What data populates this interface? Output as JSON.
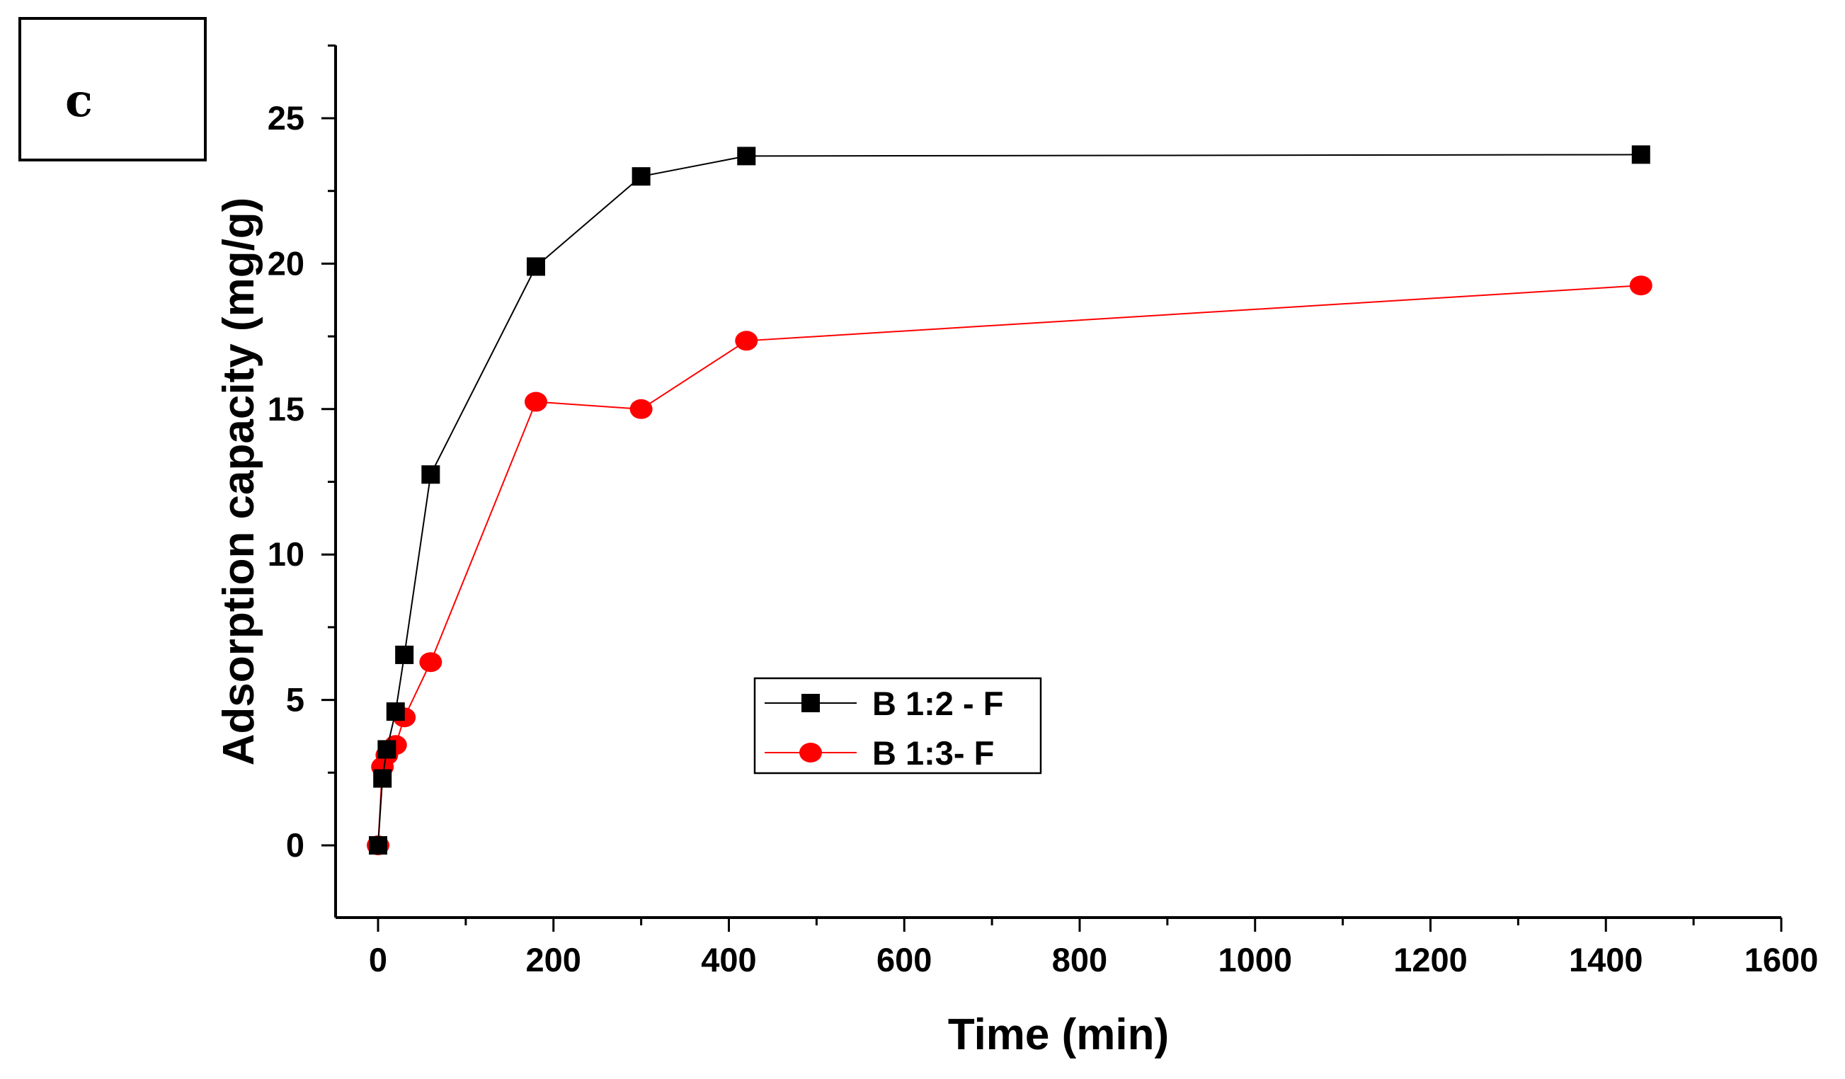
{
  "panel_label": "c",
  "chart_data": {
    "type": "line",
    "title": "",
    "xlabel": "Time (min)",
    "ylabel": "Adsorption capacity (mg/g)",
    "xlim": [
      -50,
      1600
    ],
    "ylim": [
      -2.5,
      27.5
    ],
    "xticks": [
      0,
      200,
      400,
      600,
      800,
      1000,
      1200,
      1400,
      1600
    ],
    "yticks": [
      0,
      5,
      10,
      15,
      20,
      25
    ],
    "xtick_labels": [
      "0",
      "200",
      "400",
      "600",
      "800",
      "1000",
      "1200",
      "1400",
      "1600"
    ],
    "ytick_labels": [
      "0",
      "5",
      "10",
      "15",
      "20",
      "25"
    ],
    "grid": false,
    "legend_position": "center",
    "series": [
      {
        "name": "B 1:2 - F",
        "marker": "square",
        "color": "#000000",
        "x": [
          0,
          5,
          10,
          20,
          30,
          60,
          180,
          300,
          420,
          1440
        ],
        "y": [
          0,
          2.3,
          3.3,
          4.6,
          6.55,
          12.75,
          19.9,
          23.0,
          23.7,
          23.75
        ]
      },
      {
        "name": "B 1:3- F",
        "marker": "circle",
        "color": "#ff0000",
        "x": [
          0,
          5,
          10,
          20,
          30,
          60,
          180,
          300,
          420,
          1440
        ],
        "y": [
          0,
          2.7,
          3.1,
          3.45,
          4.4,
          6.3,
          15.25,
          15.0,
          17.35,
          19.25
        ]
      }
    ]
  }
}
